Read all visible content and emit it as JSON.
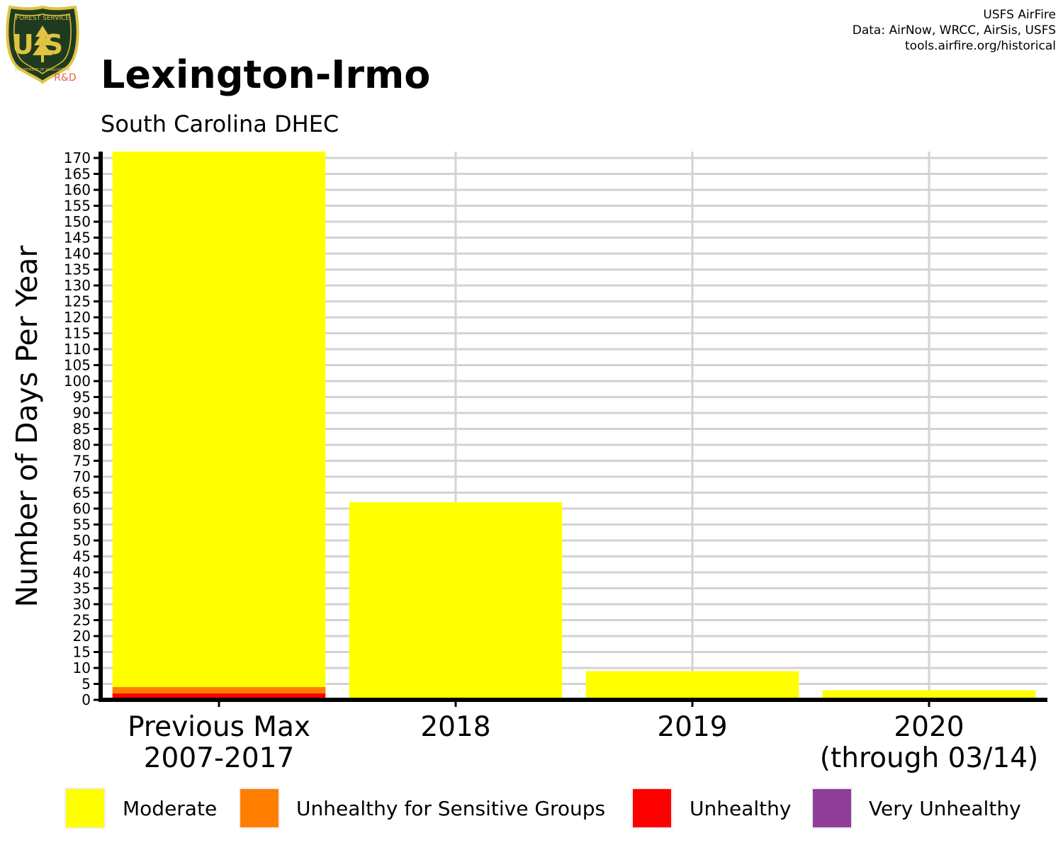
{
  "header": {
    "title": "Lexington-Irmo",
    "subtitle": "South Carolina DHEC",
    "credits": [
      "USFS AirFire",
      "Data: AirNow, WRCC, AirSis, USFS",
      "tools.airfire.org/historical"
    ],
    "logo": {
      "top_text": "FOREST SERVICE",
      "main_text": "US",
      "bottom_text": "DEPARTMENT OF AGRICULTURE",
      "badge_text": "R&D",
      "colors": {
        "shield": "#1f3b1f",
        "trim": "#e0c341",
        "badge": "#e8604c"
      }
    }
  },
  "chart_data": {
    "type": "bar",
    "stacked": true,
    "title": "Lexington-Irmo",
    "subtitle": "South Carolina DHEC",
    "ylabel": "Number of Days Per Year",
    "xlabel": "",
    "categories": [
      "Previous Max\n2007-2017",
      "2018",
      "2019",
      "2020\n(through 03/14)"
    ],
    "ylim": [
      0,
      172
    ],
    "yticks": [
      0,
      5,
      10,
      15,
      20,
      25,
      30,
      35,
      40,
      45,
      50,
      55,
      60,
      65,
      70,
      75,
      80,
      85,
      90,
      95,
      100,
      105,
      110,
      115,
      120,
      125,
      130,
      135,
      140,
      145,
      150,
      155,
      160,
      165,
      170
    ],
    "grid": true,
    "legend_position": "bottom",
    "series": [
      {
        "name": "Unhealthy",
        "color": "#ff0000",
        "values": [
          2,
          0,
          0,
          0
        ]
      },
      {
        "name": "Unhealthy for Sensitive Groups",
        "color": "#ff7e00",
        "values": [
          2,
          0,
          0,
          0
        ]
      },
      {
        "name": "Moderate",
        "color": "#ffff00",
        "values": [
          168,
          62,
          9,
          3
        ]
      },
      {
        "name": "Very Unhealthy",
        "color": "#8f3f97",
        "values": [
          0,
          0,
          0,
          0
        ]
      }
    ],
    "legend": [
      {
        "label": "Moderate",
        "color": "#ffff00"
      },
      {
        "label": "Unhealthy for Sensitive Groups",
        "color": "#ff7e00"
      },
      {
        "label": "Unhealthy",
        "color": "#ff0000"
      },
      {
        "label": "Very Unhealthy",
        "color": "#8f3f97"
      }
    ]
  }
}
